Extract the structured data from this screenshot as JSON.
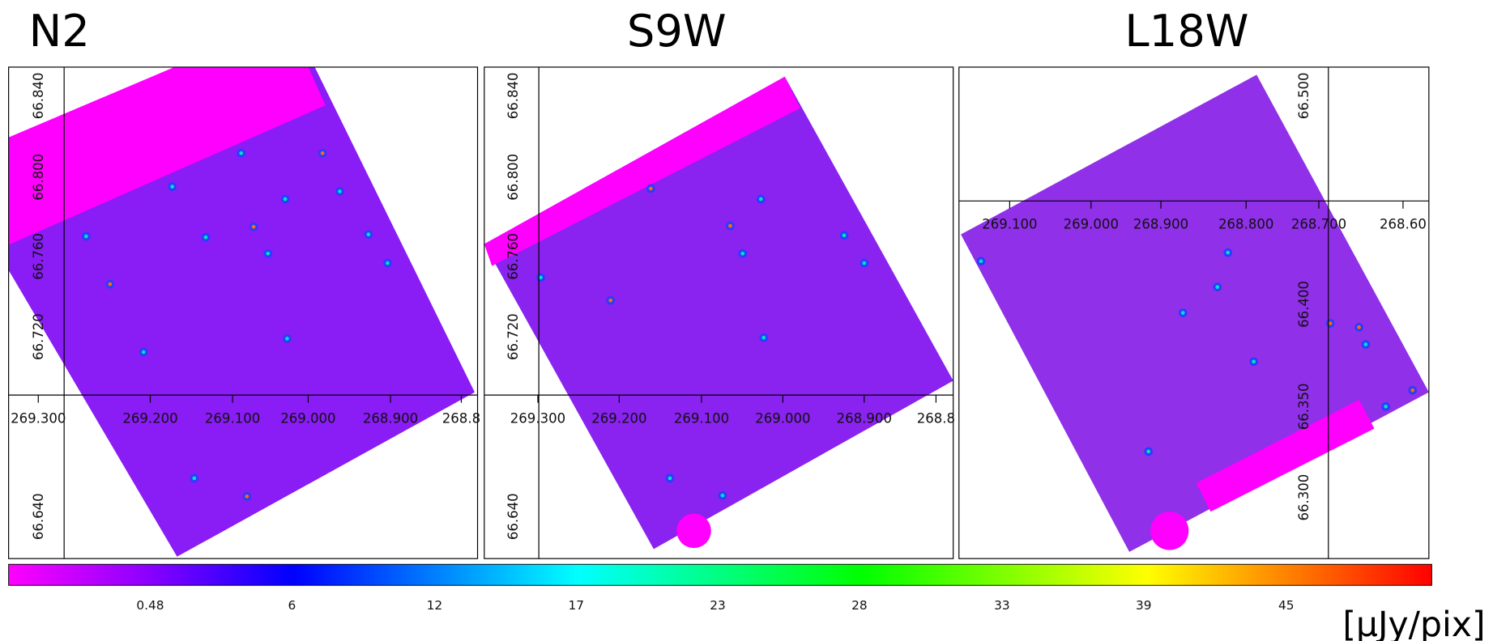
{
  "panels": [
    {
      "title": "N2",
      "x_ticks": [
        "269.300",
        "269.200",
        "269.100",
        "269.000",
        "268.900",
        "268.8"
      ],
      "y_ticks": [
        "66.840",
        "66.800",
        "66.760",
        "66.720",
        "66.640"
      ]
    },
    {
      "title": "S9W",
      "x_ticks": [
        "269.300",
        "269.200",
        "269.100",
        "269.000",
        "268.900",
        "268.8"
      ],
      "y_ticks": [
        "66.840",
        "66.800",
        "66.760",
        "66.720",
        "66.640"
      ]
    },
    {
      "title": "L18W",
      "x_ticks": [
        "269.100",
        "269.000",
        "268.900",
        "268.800",
        "268.700",
        "268.60"
      ],
      "y_ticks": [
        "66.500",
        "66.400",
        "66.350",
        "66.300"
      ]
    }
  ],
  "colorbar": {
    "ticks": [
      "0.48",
      "6",
      "12",
      "17",
      "23",
      "28",
      "33",
      "39",
      "45"
    ],
    "unit": "[μJy/pix]"
  }
}
